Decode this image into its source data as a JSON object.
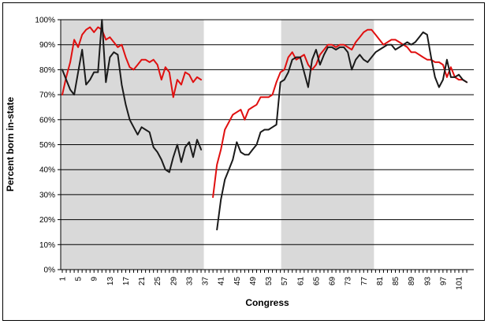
{
  "figure": {
    "background": "#ffffff",
    "border_color": "#000000"
  },
  "chart_data": {
    "type": "line",
    "title": "",
    "xlabel": "Congress",
    "ylabel": "Percent born in-state",
    "legend": "none",
    "grid": "horizontal",
    "gridline_color": "#000000",
    "band_color": "#d9d9d9",
    "shaded_bands_congress": [
      [
        0.6,
        36.7
      ],
      [
        56.2,
        79.6
      ]
    ],
    "x_range": [
      1,
      103
    ],
    "ylim": [
      0,
      100
    ],
    "y_tick_step": 10,
    "y_tick_labels": [
      "0%",
      "10%",
      "20%",
      "30%",
      "40%",
      "50%",
      "60%",
      "70%",
      "80%",
      "90%",
      "100%"
    ],
    "x_tick_minor_step": 1,
    "x_tick_labels": [
      "1",
      "5",
      "9",
      "13",
      "17",
      "21",
      "25",
      "29",
      "33",
      "37",
      "41",
      "45",
      "49",
      "53",
      "57",
      "61",
      "65",
      "69",
      "73",
      "77",
      "81",
      "85",
      "89",
      "93",
      "97",
      "101"
    ],
    "x_labeled_ticks": [
      1,
      5,
      9,
      13,
      17,
      21,
      25,
      29,
      33,
      37,
      41,
      45,
      49,
      53,
      57,
      61,
      65,
      69,
      73,
      77,
      81,
      85,
      89,
      93,
      97,
      101
    ],
    "x": [
      1,
      2,
      3,
      4,
      5,
      6,
      7,
      8,
      9,
      10,
      11,
      12,
      13,
      14,
      15,
      16,
      17,
      18,
      19,
      20,
      21,
      22,
      23,
      24,
      25,
      26,
      27,
      28,
      29,
      30,
      31,
      32,
      33,
      34,
      35,
      36,
      37,
      38,
      39,
      40,
      41,
      42,
      43,
      44,
      45,
      46,
      47,
      48,
      49,
      50,
      51,
      52,
      53,
      54,
      55,
      56,
      57,
      58,
      59,
      60,
      61,
      62,
      63,
      64,
      65,
      66,
      67,
      68,
      69,
      70,
      71,
      72,
      73,
      74,
      75,
      76,
      77,
      78,
      79,
      80,
      81,
      82,
      83,
      84,
      85,
      86,
      87,
      88,
      89,
      90,
      91,
      92,
      93,
      94,
      95,
      96,
      97,
      98,
      99,
      100,
      101,
      102,
      103
    ],
    "series": [
      {
        "name": "red-series",
        "color": "#e01010",
        "values": [
          70,
          77,
          83,
          92,
          89,
          94,
          96,
          97,
          95,
          97,
          96,
          92,
          93,
          91,
          89,
          90,
          85,
          81,
          80,
          82,
          84,
          84,
          83,
          84,
          82,
          76,
          81,
          79,
          69,
          76,
          74,
          79,
          78,
          75,
          77,
          76,
          null,
          null,
          29,
          42,
          48,
          56,
          59,
          62,
          63,
          64,
          60,
          64,
          65,
          66,
          69,
          69,
          69,
          70,
          75,
          79,
          80,
          85,
          87,
          84,
          85,
          86,
          82,
          80,
          82,
          86,
          88,
          90,
          90,
          89,
          90,
          90,
          89,
          88,
          91,
          93,
          95,
          96,
          96,
          94,
          92,
          90,
          91,
          92,
          92,
          91,
          90,
          89,
          87,
          87,
          86,
          85,
          84,
          84,
          83,
          83,
          82,
          77,
          81,
          77,
          76,
          76,
          75
        ]
      },
      {
        "name": "black-series",
        "color": "#1a1a1a",
        "values": [
          80,
          76,
          72,
          70,
          79,
          88,
          74,
          76,
          79,
          79,
          100,
          75,
          85,
          87,
          86,
          74,
          66,
          60,
          57,
          54,
          57,
          56,
          55,
          49,
          47,
          44,
          40,
          39,
          45,
          50,
          43,
          49,
          51,
          45,
          52,
          48,
          null,
          null,
          null,
          16,
          28,
          36,
          40,
          44,
          51,
          47,
          46,
          46,
          48,
          50,
          55,
          56,
          56,
          57,
          58,
          75,
          76,
          79,
          84,
          85,
          85,
          79,
          73,
          84,
          88,
          82,
          86,
          89,
          89,
          88,
          89,
          89,
          87,
          80,
          84,
          86,
          84,
          83,
          85,
          87,
          88,
          89,
          90,
          90,
          88,
          89,
          90,
          91,
          90,
          91,
          93,
          95,
          94,
          85,
          77,
          73,
          76,
          84,
          77,
          77,
          78,
          76,
          75
        ]
      }
    ]
  }
}
